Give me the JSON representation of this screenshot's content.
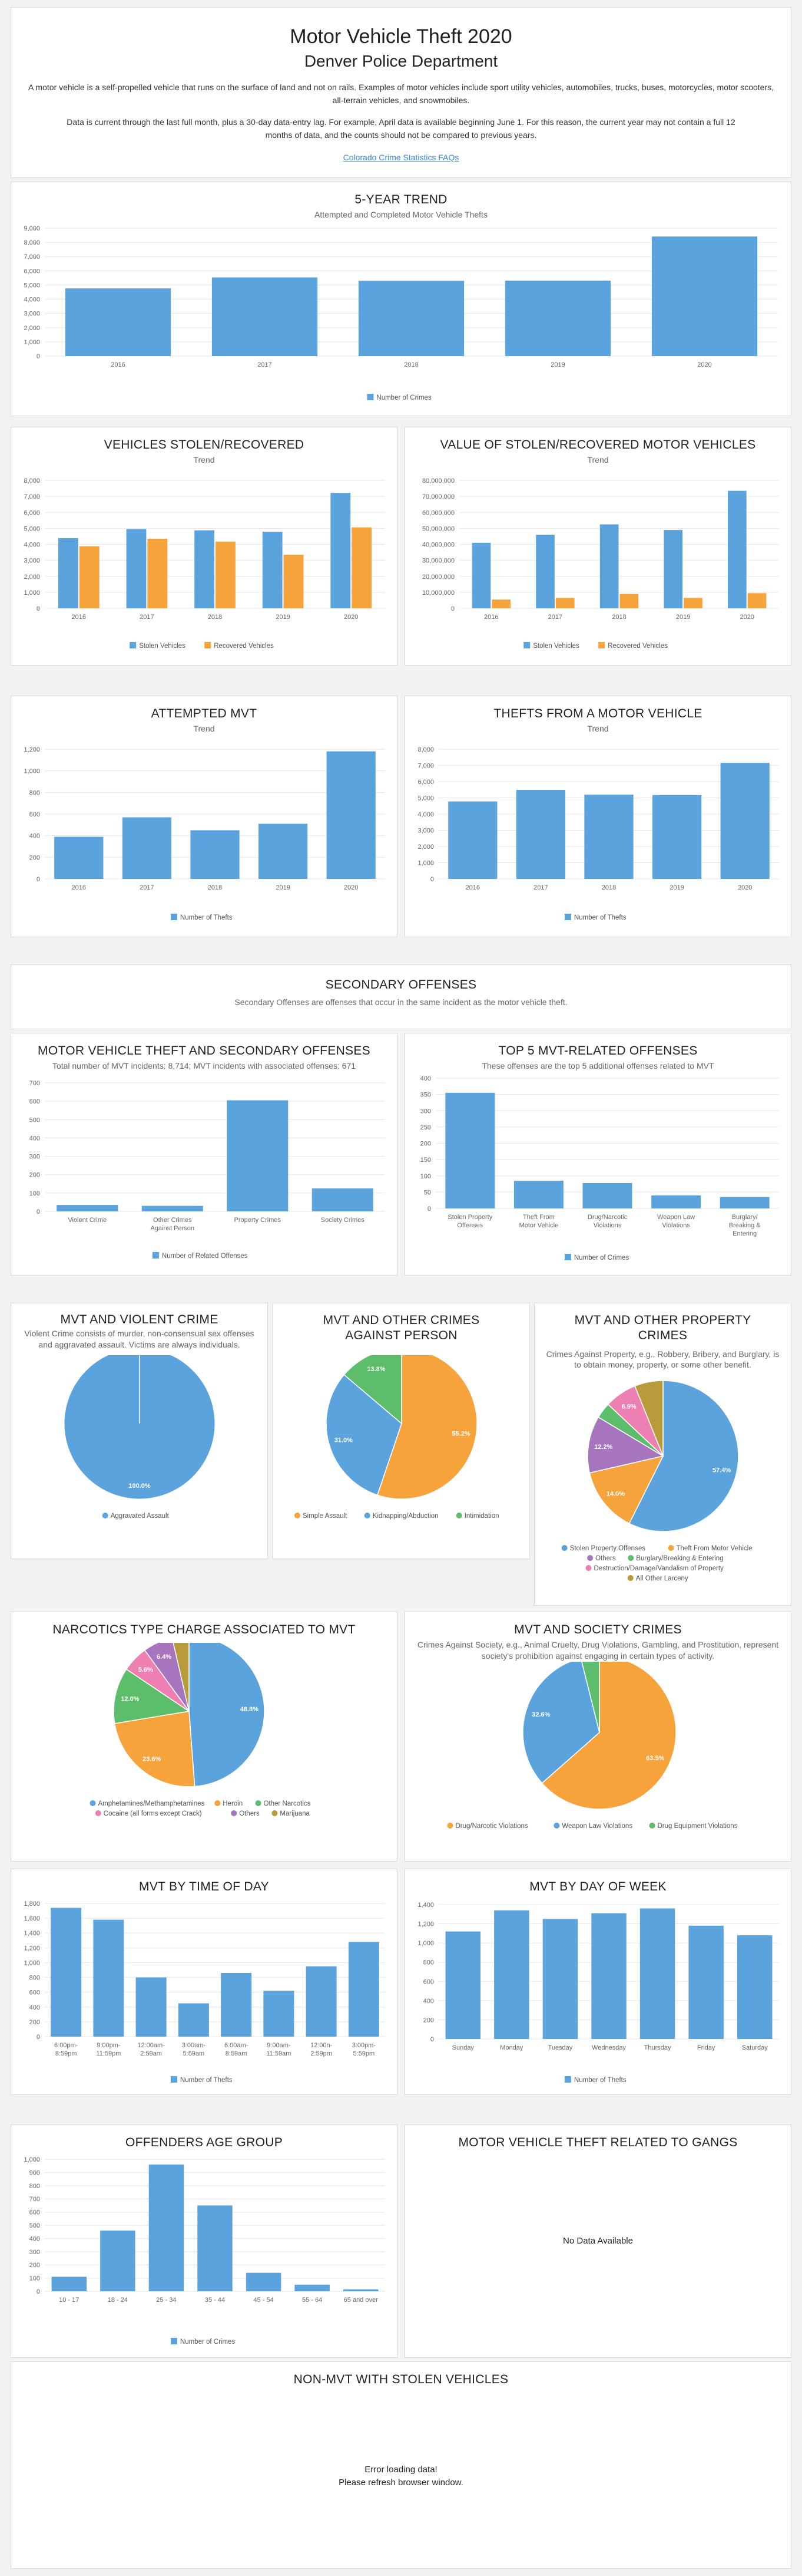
{
  "header": {
    "title": "Motor Vehicle Theft 2020",
    "subtitle": "Denver Police Department",
    "para1": "A motor vehicle is a self-propelled vehicle that runs on the surface of land and not on rails. Examples of motor vehicles include sport utility vehicles, automobiles, trucks, buses, motorcycles, motor scooters, all-terrain vehicles, and snowmobiles.",
    "para2": "Data is current through the last full month, plus a 30-day data-entry lag. For example, April data is available beginning June 1. For this reason, the current year may not contain a full 12 months of data, and the counts should not be compared to previous years.",
    "link": "Colorado Crime Statistics FAQs"
  },
  "colors": {
    "blue": "#5ba3dc",
    "orange": "#f7a33c",
    "green": "#5cbd6b",
    "purple": "#a775bd",
    "pink": "#ee7fb3",
    "olive": "#b99b3b"
  },
  "trend5": {
    "title": "5-Year Trend",
    "subtitle": "Attempted and Completed Motor Vehicle Thefts",
    "chart_data": {
      "type": "bar",
      "categories": [
        "2016",
        "2017",
        "2018",
        "2019",
        "2020"
      ],
      "series": [
        {
          "name": "Number of Crimes",
          "values": [
            4760,
            5530,
            5290,
            5300,
            8410
          ]
        }
      ],
      "ylim": [
        0,
        9000
      ],
      "yticks": [
        0,
        1000,
        2000,
        3000,
        4000,
        5000,
        6000,
        7000,
        8000,
        9000
      ],
      "grid": true,
      "legend": "bottom"
    }
  },
  "vehicles": {
    "title": "Vehicles Stolen/Recovered",
    "subtitle": "Trend",
    "chart_data": {
      "type": "bar",
      "categories": [
        "2016",
        "2017",
        "2018",
        "2019",
        "2020"
      ],
      "series": [
        {
          "name": "Stolen Vehicles",
          "values": [
            4390,
            4960,
            4880,
            4790,
            7220
          ]
        },
        {
          "name": "Recovered Vehicles",
          "values": [
            3880,
            4350,
            4170,
            3350,
            5060
          ]
        }
      ],
      "ylim": [
        0,
        8000
      ],
      "yticks": [
        0,
        1000,
        2000,
        3000,
        4000,
        5000,
        6000,
        7000,
        8000
      ],
      "grid": true,
      "legend": "bottom"
    }
  },
  "value": {
    "title": "Value of Stolen/Recovered Motor Vehicles",
    "subtitle": "Trend",
    "chart_data": {
      "type": "bar",
      "categories": [
        "2016",
        "2017",
        "2018",
        "2019",
        "2020"
      ],
      "series": [
        {
          "name": "Stolen Vehicles",
          "values": [
            41000000,
            46000000,
            52500000,
            49000000,
            73500000
          ]
        },
        {
          "name": "Recovered Vehicles",
          "values": [
            5500000,
            6500000,
            9000000,
            6500000,
            9500000
          ]
        }
      ],
      "ylim": [
        0,
        80000000
      ],
      "yticks": [
        0,
        10000000,
        20000000,
        30000000,
        40000000,
        50000000,
        60000000,
        70000000,
        80000000
      ],
      "grid": true,
      "legend": "bottom"
    }
  },
  "attempted": {
    "title": "Attempted MVT",
    "subtitle": "Trend",
    "chart_data": {
      "type": "bar",
      "categories": [
        "2016",
        "2017",
        "2018",
        "2019",
        "2020"
      ],
      "series": [
        {
          "name": "Number of Thefts",
          "values": [
            390,
            570,
            450,
            510,
            1180
          ]
        }
      ],
      "ylim": [
        0,
        1200
      ],
      "yticks": [
        0,
        200,
        400,
        600,
        800,
        1000,
        1200
      ],
      "grid": true,
      "legend": "bottom"
    }
  },
  "fromVehicle": {
    "title": "Thefts from a Motor Vehicle",
    "subtitle": "Trend",
    "chart_data": {
      "type": "bar",
      "categories": [
        "2016",
        "2017",
        "2018",
        "2019",
        "2020"
      ],
      "series": [
        {
          "name": "Number of Thefts",
          "values": [
            4780,
            5490,
            5200,
            5170,
            7160
          ]
        }
      ],
      "ylim": [
        0,
        8000
      ],
      "yticks": [
        0,
        1000,
        2000,
        3000,
        4000,
        5000,
        6000,
        7000,
        8000
      ],
      "grid": true,
      "legend": "bottom"
    }
  },
  "secondary": {
    "title": "Secondary Offenses",
    "text": "Secondary Offenses are offenses that occur in the same incident as the motor vehicle theft."
  },
  "mvtSecondary": {
    "title": "Motor Vehicle Theft and Secondary Offenses",
    "subtitle": "Total number of MVT incidents: 8,714; MVT incidents with associated offenses: 671",
    "chart_data": {
      "type": "bar",
      "categories": [
        "Violent Crime",
        "Other Crimes Against Person",
        "Property Crimes",
        "Society Crimes"
      ],
      "series": [
        {
          "name": "Number of Related Offenses",
          "values": [
            35,
            30,
            605,
            125
          ]
        }
      ],
      "ylim": [
        0,
        700
      ],
      "yticks": [
        0,
        100,
        200,
        300,
        400,
        500,
        600,
        700
      ],
      "grid": true,
      "legend": "bottom"
    }
  },
  "top5": {
    "title": "Top 5 MVT-Related Offenses",
    "subtitle": "These offenses are the top 5 additional offenses related to MVT",
    "chart_data": {
      "type": "bar",
      "categories": [
        "Stolen Property Offenses",
        "Theft From Motor Vehicle",
        "Drug/Narcotic Violations",
        "Weapon Law Violations",
        "Burglary/ Breaking & Entering"
      ],
      "series": [
        {
          "name": "Number of Crimes",
          "values": [
            355,
            85,
            78,
            40,
            35
          ]
        }
      ],
      "ylim": [
        0,
        400
      ],
      "yticks": [
        0,
        50,
        100,
        150,
        200,
        250,
        300,
        350,
        400
      ],
      "grid": true,
      "legend": "bottom"
    }
  },
  "violent": {
    "title": "MVT and Violent Crime",
    "subtitle": "Violent Crime consists of murder, non-consensual sex offenses and aggravated assault. Victims are always individuals.",
    "chart_data": {
      "type": "pie",
      "slices": [
        {
          "name": "Aggravated Assault",
          "value": 100.0,
          "label": "100.0%",
          "color": "#5ba3dc"
        }
      ],
      "legend": "bottom"
    }
  },
  "person": {
    "title": "MVT and Other Crimes Against Person",
    "chart_data": {
      "type": "pie",
      "slices": [
        {
          "name": "Simple Assault",
          "value": 55.2,
          "label": "55.2%",
          "color": "#f7a33c"
        },
        {
          "name": "Kidnapping/Abduction",
          "value": 31.0,
          "label": "31.0%",
          "color": "#5ba3dc"
        },
        {
          "name": "Intimidation",
          "value": 13.8,
          "label": "13.8%",
          "color": "#5cbd6b"
        }
      ],
      "legend": "bottom"
    }
  },
  "property": {
    "title": "MVT and Other Property Crimes",
    "subtitle": "Crimes Against Property, e.g., Robbery, Bribery, and Burglary, is to obtain money, property, or some other benefit.",
    "chart_data": {
      "type": "pie",
      "slices": [
        {
          "name": "Stolen Property Offenses",
          "value": 57.4,
          "label": "57.4%",
          "color": "#5ba3dc"
        },
        {
          "name": "Theft From Motor Vehicle",
          "value": 14.0,
          "label": "14.0%",
          "color": "#f7a33c"
        },
        {
          "name": "Others",
          "value": 12.2,
          "label": "12.2%",
          "color": "#a775bd"
        },
        {
          "name": "Burglary/Breaking & Entering",
          "value": 3.4,
          "label": "",
          "color": "#5cbd6b"
        },
        {
          "name": "Destruction/Damage/Vandalism of Property",
          "value": 6.9,
          "label": "6.9%",
          "color": "#ee7fb3"
        },
        {
          "name": "All Other Larceny",
          "value": 6.1,
          "label": "",
          "color": "#b99b3b"
        }
      ],
      "legend": "bottom"
    }
  },
  "narcotics": {
    "title": "Narcotics Type Charge Associated to MVT",
    "chart_data": {
      "type": "pie",
      "slices": [
        {
          "name": "Amphetamines/Methamphetamines",
          "value": 48.8,
          "label": "48.8%",
          "color": "#5ba3dc"
        },
        {
          "name": "Heroin",
          "value": 23.6,
          "label": "23.6%",
          "color": "#f7a33c"
        },
        {
          "name": "Other Narcotics",
          "value": 12.0,
          "label": "12.0%",
          "color": "#5cbd6b"
        },
        {
          "name": "Cocaine (all forms except Crack)",
          "value": 5.6,
          "label": "5.6%",
          "color": "#ee7fb3"
        },
        {
          "name": "Others",
          "value": 6.4,
          "label": "6.4%",
          "color": "#a775bd"
        },
        {
          "name": "Marijuana",
          "value": 3.6,
          "label": "",
          "color": "#b99b3b"
        }
      ],
      "legend": "bottom"
    }
  },
  "society": {
    "title": "MVT and Society Crimes",
    "subtitle": "Crimes Against Society, e.g., Animal Cruelty, Drug Violations, Gambling, and Prostitution, represent society's prohibition against engaging in certain types of activity.",
    "chart_data": {
      "type": "pie",
      "slices": [
        {
          "name": "Drug/Narcotic Violations",
          "value": 63.5,
          "label": "63.5%",
          "color": "#f7a33c"
        },
        {
          "name": "Weapon Law Violations",
          "value": 32.6,
          "label": "32.6%",
          "color": "#5ba3dc"
        },
        {
          "name": "Drug Equipment Violations",
          "value": 3.9,
          "label": "",
          "color": "#5cbd6b"
        }
      ],
      "legend": "bottom"
    }
  },
  "timeOfDay": {
    "title": "MVT by Time of Day",
    "chart_data": {
      "type": "bar",
      "categories": [
        "6:00pm- 8:59pm",
        "9:00pm- 11:59pm",
        "12:00am- 2:59am",
        "3:00am- 5:59am",
        "6:00am- 8:59am",
        "9:00am- 11:59am",
        "12:00n- 2:59pm",
        "3:00pm- 5:59pm"
      ],
      "series": [
        {
          "name": "Number of Thefts",
          "values": [
            1740,
            1580,
            800,
            450,
            860,
            620,
            950,
            1280
          ]
        }
      ],
      "ylim": [
        0,
        1800
      ],
      "yticks": [
        0,
        200,
        400,
        600,
        800,
        1000,
        1200,
        1400,
        1600,
        1800
      ],
      "grid": true,
      "legend": "bottom"
    }
  },
  "dayOfWeek": {
    "title": "MVT by Day of Week",
    "chart_data": {
      "type": "bar",
      "categories": [
        "Sunday",
        "Monday",
        "Tuesday",
        "Wednesday",
        "Thursday",
        "Friday",
        "Saturday"
      ],
      "series": [
        {
          "name": "Number of Thefts",
          "values": [
            1120,
            1340,
            1250,
            1310,
            1360,
            1180,
            1080
          ]
        }
      ],
      "ylim": [
        0,
        1400
      ],
      "yticks": [
        0,
        200,
        400,
        600,
        800,
        1000,
        1200,
        1400
      ],
      "grid": true,
      "legend": "bottom"
    }
  },
  "age": {
    "title": "Offenders Age Group",
    "chart_data": {
      "type": "bar",
      "categories": [
        "10 - 17",
        "18 - 24",
        "25 - 34",
        "35 - 44",
        "45 - 54",
        "55 - 64",
        "65 and over"
      ],
      "series": [
        {
          "name": "Number of Crimes",
          "values": [
            110,
            460,
            960,
            650,
            140,
            50,
            15
          ]
        }
      ],
      "ylim": [
        0,
        1000
      ],
      "yticks": [
        0,
        100,
        200,
        300,
        400,
        500,
        600,
        700,
        800,
        900,
        1000
      ],
      "grid": true,
      "legend": "bottom"
    }
  },
  "gangs": {
    "title": "Motor Vehicle Theft Related to Gangs",
    "message": "No Data Available"
  },
  "nonMvt": {
    "title": "Non-MVT with Stolen Vehicles",
    "message1": "Error loading data!",
    "message2": "Please refresh browser window."
  }
}
